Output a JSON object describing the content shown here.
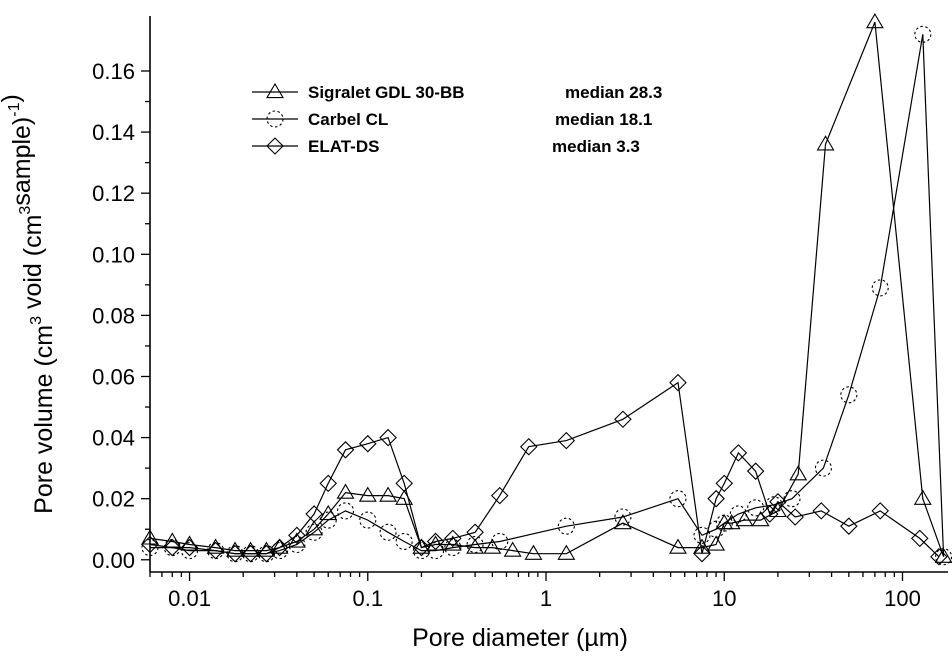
{
  "chart_data": {
    "type": "line",
    "xscale": "log",
    "xlabel": "Pore diameter (µm)",
    "ylabel_parts": [
      "Pore volume (cm",
      "3",
      " void (cm",
      "3",
      "sample)",
      "-1",
      ")"
    ],
    "xlim": [
      0.006,
      180
    ],
    "ylim": [
      -0.004,
      0.178
    ],
    "xticks": [
      {
        "value": 0.01,
        "label": "0.01"
      },
      {
        "value": 0.1,
        "label": "0.1"
      },
      {
        "value": 1,
        "label": "1"
      },
      {
        "value": 10,
        "label": "10"
      },
      {
        "value": 100,
        "label": "100"
      }
    ],
    "yticks": [
      {
        "value": 0.0,
        "label": "0.00"
      },
      {
        "value": 0.02,
        "label": "0.02"
      },
      {
        "value": 0.04,
        "label": "0.04"
      },
      {
        "value": 0.06,
        "label": "0.06"
      },
      {
        "value": 0.08,
        "label": "0.08"
      },
      {
        "value": 0.1,
        "label": "0.10"
      },
      {
        "value": 0.12,
        "label": "0.12"
      },
      {
        "value": 0.14,
        "label": "0.14"
      },
      {
        "value": 0.16,
        "label": "0.16"
      }
    ],
    "grid": false,
    "legend_position": "top-left",
    "series": [
      {
        "name": "Sigralet GDL 30-BB",
        "median": "median 28.3",
        "marker": "triangle",
        "x": [
          0.006,
          0.008,
          0.01,
          0.014,
          0.018,
          0.022,
          0.027,
          0.032,
          0.04,
          0.05,
          0.06,
          0.075,
          0.1,
          0.13,
          0.16,
          0.2,
          0.24,
          0.3,
          0.4,
          0.5,
          0.65,
          0.85,
          1.3,
          2.7,
          5.5,
          7.5,
          9,
          10,
          11,
          13,
          16,
          20,
          26,
          37,
          70,
          130,
          170
        ],
        "y": [
          0.007,
          0.006,
          0.005,
          0.004,
          0.003,
          0.003,
          0.003,
          0.004,
          0.006,
          0.01,
          0.015,
          0.022,
          0.021,
          0.021,
          0.02,
          0.004,
          0.005,
          0.005,
          0.004,
          0.004,
          0.003,
          0.002,
          0.002,
          0.012,
          0.004,
          0.004,
          0.005,
          0.012,
          0.012,
          0.013,
          0.013,
          0.016,
          0.028,
          0.136,
          0.176,
          0.02,
          0.001
        ]
      },
      {
        "name": "Carbel CL",
        "median": "median 18.1",
        "marker": "circle",
        "x": [
          0.006,
          0.008,
          0.01,
          0.014,
          0.018,
          0.022,
          0.027,
          0.032,
          0.04,
          0.05,
          0.06,
          0.075,
          0.1,
          0.13,
          0.16,
          0.2,
          0.24,
          0.3,
          0.4,
          0.55,
          1.3,
          2.7,
          5.5,
          7.5,
          9,
          10,
          12,
          15,
          19,
          24,
          36,
          50,
          75,
          130,
          170
        ],
        "y": [
          0.004,
          0.004,
          0.003,
          0.003,
          0.002,
          0.002,
          0.002,
          0.003,
          0.005,
          0.009,
          0.013,
          0.016,
          0.013,
          0.009,
          0.006,
          0.003,
          0.003,
          0.004,
          0.005,
          0.006,
          0.011,
          0.014,
          0.02,
          0.008,
          0.01,
          0.012,
          0.015,
          0.017,
          0.018,
          0.02,
          0.03,
          0.054,
          0.089,
          0.172,
          0.001
        ]
      },
      {
        "name": "ELAT-DS",
        "median": "median 3.3",
        "marker": "diamond",
        "x": [
          0.006,
          0.008,
          0.01,
          0.014,
          0.018,
          0.022,
          0.027,
          0.032,
          0.04,
          0.05,
          0.06,
          0.075,
          0.1,
          0.13,
          0.16,
          0.2,
          0.24,
          0.3,
          0.4,
          0.55,
          0.8,
          1.3,
          2.7,
          5.5,
          7.5,
          9,
          10,
          12,
          15,
          18,
          20,
          25,
          35,
          50,
          75,
          125,
          160
        ],
        "y": [
          0.005,
          0.004,
          0.004,
          0.003,
          0.002,
          0.002,
          0.002,
          0.004,
          0.008,
          0.015,
          0.025,
          0.036,
          0.038,
          0.04,
          0.025,
          0.004,
          0.006,
          0.007,
          0.009,
          0.021,
          0.037,
          0.039,
          0.046,
          0.058,
          0.002,
          0.02,
          0.025,
          0.035,
          0.029,
          0.015,
          0.019,
          0.014,
          0.016,
          0.011,
          0.016,
          0.007,
          0.001
        ]
      }
    ]
  }
}
